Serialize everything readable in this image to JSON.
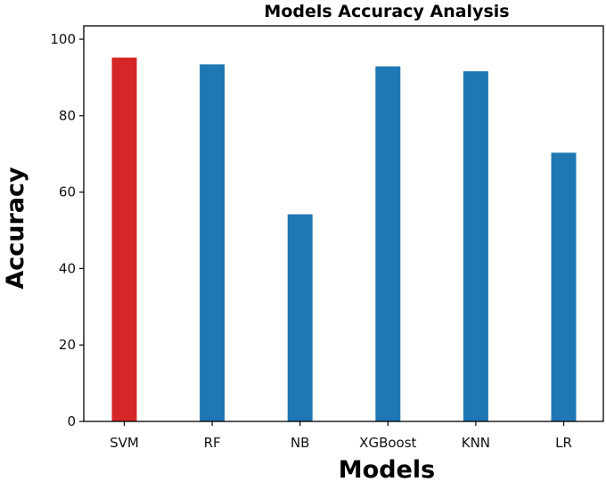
{
  "chart_data": {
    "type": "bar",
    "title": "Models Accuracy Analysis",
    "xlabel": "Models",
    "ylabel": "Accuracy",
    "categories": [
      "SVM",
      "RF",
      "NB",
      "XGBoost",
      "KNN",
      "LR"
    ],
    "values": [
      95.2,
      93.4,
      54.2,
      92.9,
      91.6,
      70.3
    ],
    "colors": [
      "#d62728",
      "#1f77b4",
      "#1f77b4",
      "#1f77b4",
      "#1f77b4",
      "#1f77b4"
    ],
    "ylim": [
      0,
      103.5
    ],
    "yticks": [
      0,
      20,
      40,
      60,
      80,
      100
    ],
    "grid": false
  }
}
